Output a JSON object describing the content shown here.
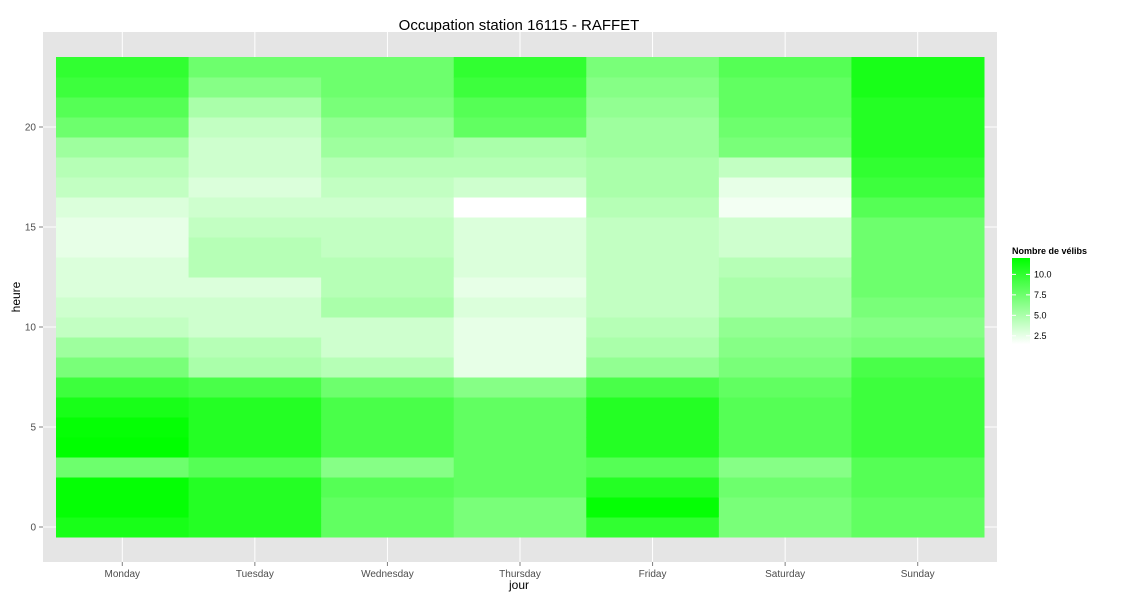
{
  "chart_data": {
    "type": "heatmap",
    "title": "Occupation station 16115 - RAFFET",
    "xlabel": "jour",
    "ylabel": "heure",
    "categories": [
      "Monday",
      "Tuesday",
      "Wednesday",
      "Thursday",
      "Friday",
      "Saturday",
      "Sunday"
    ],
    "hours": [
      0,
      1,
      2,
      3,
      4,
      5,
      6,
      7,
      8,
      9,
      10,
      11,
      12,
      13,
      14,
      15,
      16,
      17,
      18,
      19,
      20,
      21,
      22,
      23
    ],
    "y_ticks": [
      0,
      5,
      10,
      15,
      20
    ],
    "values": [
      [
        11.0,
        11.8,
        11.8,
        7.5,
        12.0,
        11.8,
        11.0,
        9.5,
        7.0,
        5.5,
        4.0,
        3.5,
        3.0,
        3.0,
        2.5,
        2.5,
        3.0,
        4.0,
        4.5,
        5.5,
        7.5,
        8.5,
        9.5,
        10.0
      ],
      [
        10.5,
        10.5,
        10.5,
        8.5,
        10.5,
        10.5,
        10.5,
        9.0,
        5.0,
        4.5,
        3.5,
        3.5,
        3.0,
        4.5,
        4.5,
        4.0,
        3.5,
        3.0,
        3.5,
        3.5,
        4.0,
        5.0,
        6.5,
        7.5
      ],
      [
        8.0,
        8.0,
        8.5,
        6.5,
        9.0,
        9.0,
        9.0,
        7.5,
        4.5,
        3.5,
        3.5,
        5.0,
        4.5,
        4.5,
        4.0,
        4.0,
        3.5,
        4.0,
        4.5,
        5.5,
        6.0,
        7.0,
        7.5,
        7.5
      ],
      [
        7.0,
        7.0,
        8.0,
        8.0,
        8.0,
        8.0,
        8.0,
        6.5,
        2.5,
        2.5,
        2.5,
        3.0,
        2.5,
        3.0,
        3.0,
        3.0,
        1.5,
        3.5,
        4.5,
        5.0,
        8.0,
        8.5,
        9.5,
        10.0
      ],
      [
        10.0,
        11.8,
        10.5,
        8.5,
        10.5,
        10.5,
        10.5,
        9.0,
        6.0,
        5.0,
        4.5,
        4.0,
        4.0,
        4.0,
        4.0,
        4.0,
        4.5,
        5.0,
        5.0,
        5.5,
        5.5,
        6.0,
        6.5,
        7.0
      ],
      [
        7.0,
        7.0,
        7.5,
        6.5,
        8.5,
        8.5,
        8.5,
        8.0,
        7.0,
        6.5,
        6.0,
        5.0,
        5.0,
        4.5,
        3.5,
        3.5,
        2.0,
        2.5,
        4.0,
        7.0,
        7.5,
        8.0,
        8.0,
        8.5
      ],
      [
        8.0,
        8.0,
        8.5,
        8.5,
        9.5,
        9.5,
        9.5,
        9.5,
        9.0,
        7.0,
        6.5,
        7.0,
        7.5,
        7.5,
        7.5,
        7.5,
        8.5,
        9.5,
        10.0,
        10.5,
        10.5,
        10.5,
        11.0,
        11.0
      ]
    ],
    "legend": {
      "title": "Nombre de vélibs",
      "ticks": [
        "2.5",
        "5.0",
        "7.5",
        "10.0"
      ],
      "tick_values": [
        2.5,
        5.0,
        7.5,
        10.0
      ],
      "range": [
        1.5,
        12.0
      ]
    },
    "colors": {
      "low": "#ffffff",
      "high": "#00ff00",
      "panel": "#e5e5e5",
      "grid": "#ffffff"
    }
  }
}
